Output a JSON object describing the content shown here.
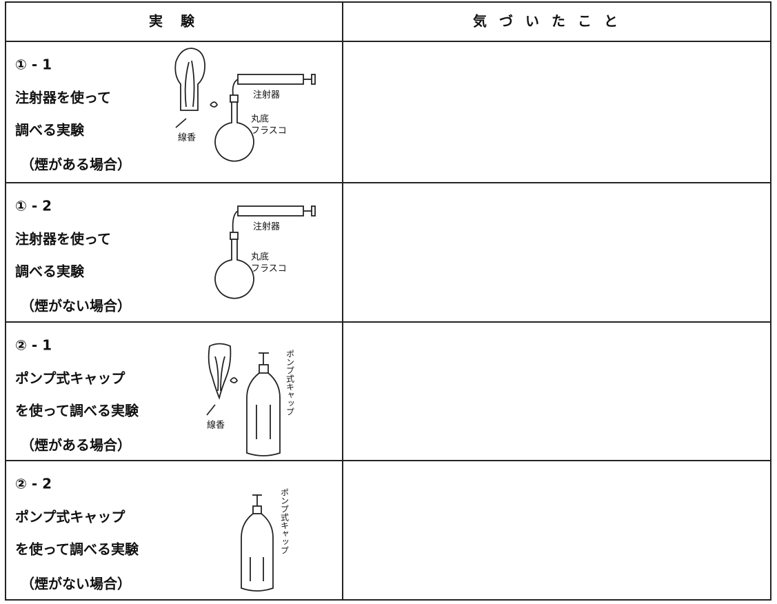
{
  "header": {
    "experiment": "実験",
    "notes": "気づいたこと"
  },
  "rows": [
    {
      "number": "① - 1",
      "lines": [
        "注射器を使って",
        "調べる実験",
        "（煙がある場合）"
      ],
      "labels": [
        "注射器",
        "丸底",
        "フラスコ",
        "線香"
      ]
    },
    {
      "number": "① - 2",
      "lines": [
        "注射器を使って",
        "調べる実験",
        "（煙がない場合）"
      ],
      "labels": [
        "注射器",
        "丸底",
        "フラスコ"
      ]
    },
    {
      "number": "② - 1",
      "lines": [
        "ポンプ式キャップ",
        "を使って調べる実験",
        "（煙がある場合）"
      ],
      "labels": [
        "ポンプ式キャップ",
        "線香"
      ]
    },
    {
      "number": "② - 2",
      "lines": [
        "ポンプ式キャップ",
        "を使って調べる実験",
        "（煙がない場合）"
      ],
      "labels": [
        "ポンプ式キャップ"
      ]
    }
  ]
}
